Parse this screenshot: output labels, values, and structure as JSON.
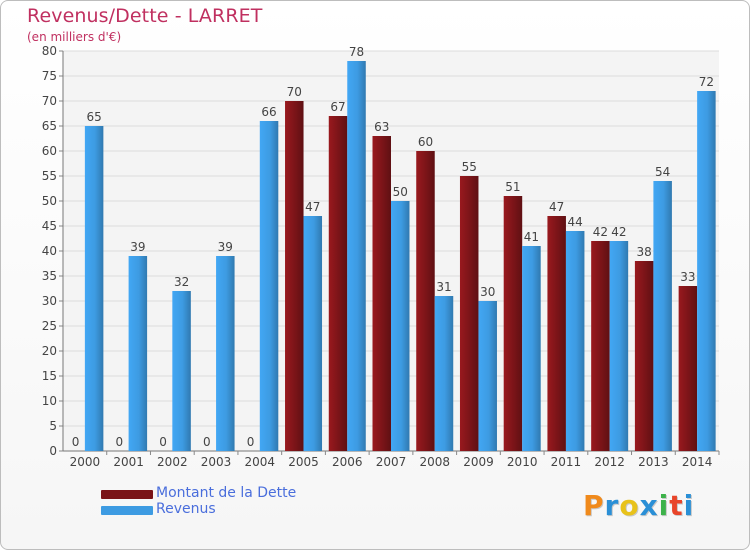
{
  "title": "Revenus/Dette - LARRET",
  "subtitle": "(en milliers d'€)",
  "logo": {
    "text": "Proxiti",
    "colors": [
      "#f08a1c",
      "#2a8fd6",
      "#e8c21a",
      "#2a8fd6",
      "#3db24a",
      "#e8452a",
      "#2a8fd6"
    ]
  },
  "chart_data": {
    "type": "bar",
    "categories": [
      "2000",
      "2001",
      "2002",
      "2003",
      "2004",
      "2005",
      "2006",
      "2007",
      "2008",
      "2009",
      "2010",
      "2011",
      "2012",
      "2013",
      "2014"
    ],
    "series": [
      {
        "name": "Montant de la Dette",
        "color": "#7a1418",
        "values": [
          0,
          0,
          0,
          0,
          0,
          70,
          67,
          63,
          60,
          55,
          51,
          47,
          42,
          38,
          33
        ]
      },
      {
        "name": "Revenus",
        "color": "#3d9be2",
        "values": [
          65,
          39,
          32,
          39,
          66,
          47,
          78,
          50,
          31,
          30,
          41,
          44,
          42,
          54,
          72
        ]
      }
    ],
    "ylim": [
      0,
      80
    ],
    "yticks": [
      0,
      5,
      10,
      15,
      20,
      25,
      30,
      35,
      40,
      45,
      50,
      55,
      60,
      65,
      70,
      75,
      80
    ],
    "grid": true,
    "legend": "bottom-left"
  }
}
